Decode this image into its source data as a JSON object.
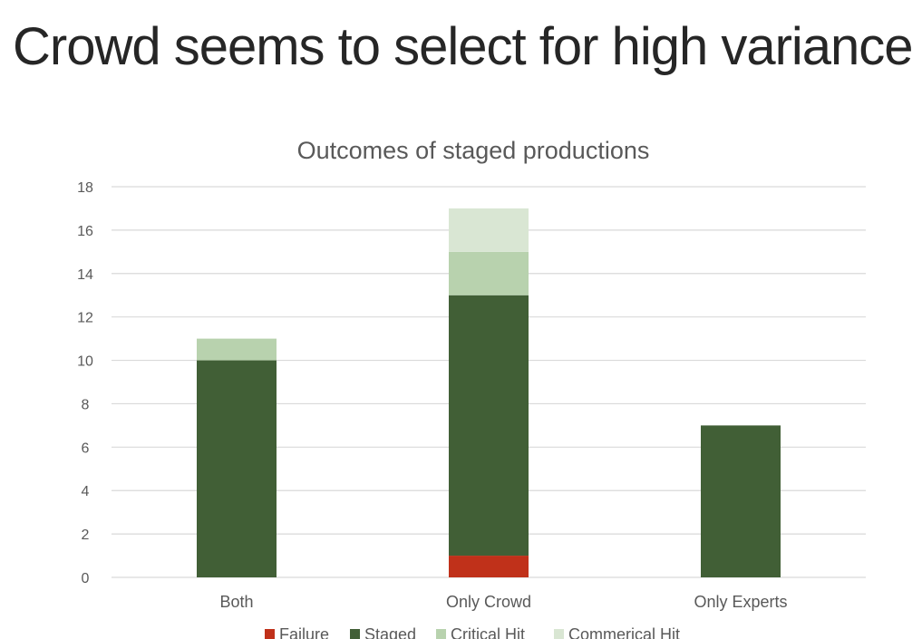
{
  "slide": {
    "title": "Crowd seems to select for high variance"
  },
  "colors": {
    "failure": "#c0311a",
    "staged": "#415f36",
    "critical_hit": "#b8d2ae",
    "commercial_hit": "#d9e6d3",
    "grid": "#d9d9d9",
    "text": "#595959"
  },
  "chart_data": {
    "type": "bar",
    "stacked": true,
    "title": "Outcomes of staged productions",
    "xlabel": "",
    "ylabel": "",
    "ylim": [
      0,
      18
    ],
    "yticks": [
      0,
      2,
      4,
      6,
      8,
      10,
      12,
      14,
      16,
      18
    ],
    "grid": true,
    "legend_position": "bottom",
    "categories": [
      "Both",
      "Only Crowd",
      "Only Experts"
    ],
    "series": [
      {
        "name": "Failure",
        "color": "#c0311a",
        "values": [
          0,
          1,
          0
        ]
      },
      {
        "name": "Staged",
        "color": "#415f36",
        "values": [
          10,
          12,
          7
        ]
      },
      {
        "name": "Critical Hit",
        "color": "#b8d2ae",
        "values": [
          1,
          2,
          0
        ]
      },
      {
        "name": "Commerical Hit",
        "color": "#d9e6d3",
        "values": [
          0,
          2,
          0
        ]
      }
    ]
  }
}
